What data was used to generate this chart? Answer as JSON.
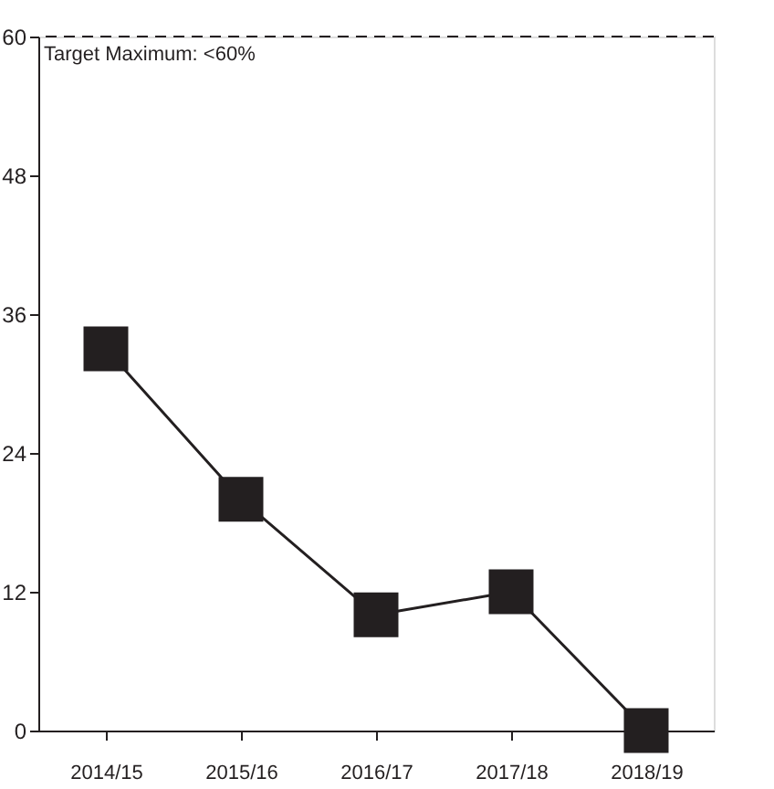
{
  "chart_data": {
    "type": "line",
    "categories": [
      "2014/15",
      "2015/16",
      "2016/17",
      "2017/18",
      "2018/19"
    ],
    "series": [
      {
        "color": "#231f20",
        "values": [
          33,
          20,
          10,
          12,
          0
        ]
      }
    ],
    "ylim": [
      0,
      60
    ],
    "yticks": [
      0,
      12,
      24,
      36,
      48,
      60
    ],
    "grid": false,
    "marker": "square",
    "line_style": "solid",
    "ref_lines": [
      {
        "axis": "y",
        "value": 60,
        "label": "Target Maximum: <60%",
        "color": "#231f20",
        "line_style": "dashed"
      }
    ]
  }
}
